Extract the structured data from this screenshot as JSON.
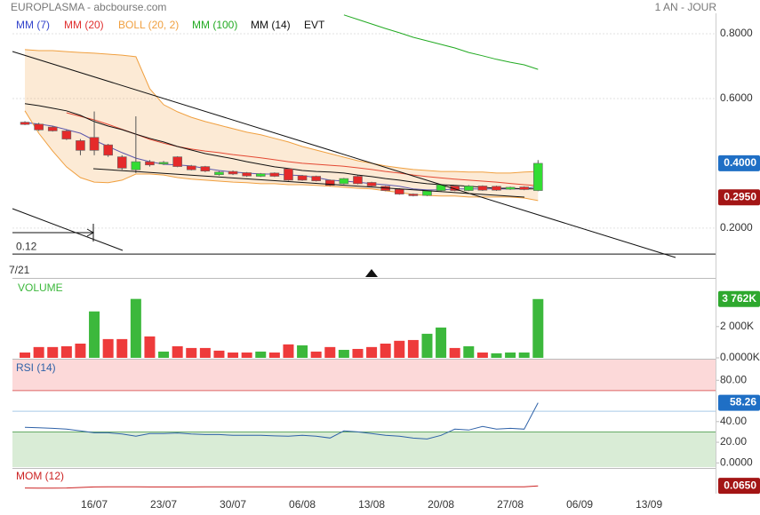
{
  "header": {
    "title": "EUROPLASMA - abcbourse.com",
    "period": "1 AN - JOUR"
  },
  "chart_data": [
    {
      "type": "candlestick",
      "xlim": [
        -0.9,
        49.8
      ],
      "xticks": [
        {
          "value": 5,
          "label": "16/07"
        },
        {
          "value": 10,
          "label": "23/07"
        },
        {
          "value": 15,
          "label": "30/07"
        },
        {
          "value": 20,
          "label": "06/08"
        },
        {
          "value": 25,
          "label": "13/08"
        },
        {
          "value": 30,
          "label": "20/08"
        },
        {
          "value": 35,
          "label": "27/08"
        },
        {
          "value": 40,
          "label": "06/09"
        },
        {
          "value": 45,
          "label": "13/09"
        }
      ],
      "ylim": [
        0.049,
        0.863
      ],
      "yticks": [
        {
          "value": 0.8,
          "label": "0.8000"
        },
        {
          "value": 0.6,
          "label": "0.6000"
        },
        {
          "value": 0.2,
          "label": "0.2000"
        }
      ],
      "grid": true,
      "up_color": "#33dd33",
      "down_color": "#e52a2a",
      "open": [
        0.527,
        0.521,
        0.512,
        0.5,
        0.47,
        0.48,
        0.457,
        0.42,
        0.38,
        0.405,
        0.398,
        0.42,
        0.392,
        0.39,
        0.365,
        0.375,
        0.371,
        0.36,
        0.37,
        0.383,
        0.362,
        0.36,
        0.348,
        0.337,
        0.36,
        0.341,
        0.329,
        0.32,
        0.305,
        0.301,
        0.316,
        0.33,
        0.316,
        0.33,
        0.329,
        0.32,
        0.327,
        0.316
      ],
      "high": [
        0.53,
        0.525,
        0.515,
        0.503,
        0.475,
        0.56,
        0.46,
        0.425,
        0.545,
        0.41,
        0.407,
        0.422,
        0.395,
        0.392,
        0.376,
        0.378,
        0.373,
        0.37,
        0.372,
        0.386,
        0.364,
        0.362,
        0.35,
        0.355,
        0.363,
        0.343,
        0.331,
        0.323,
        0.307,
        0.317,
        0.336,
        0.332,
        0.333,
        0.332,
        0.331,
        0.328,
        0.329,
        0.41
      ],
      "low": [
        0.518,
        0.5,
        0.498,
        0.472,
        0.425,
        0.425,
        0.42,
        0.38,
        0.37,
        0.39,
        0.395,
        0.388,
        0.378,
        0.373,
        0.362,
        0.364,
        0.358,
        0.358,
        0.358,
        0.346,
        0.346,
        0.344,
        0.33,
        0.335,
        0.335,
        0.328,
        0.314,
        0.303,
        0.298,
        0.299,
        0.314,
        0.314,
        0.314,
        0.315,
        0.315,
        0.318,
        0.317,
        0.314
      ],
      "close": [
        0.52,
        0.503,
        0.5,
        0.475,
        0.44,
        0.44,
        0.425,
        0.385,
        0.405,
        0.395,
        0.403,
        0.39,
        0.38,
        0.376,
        0.373,
        0.367,
        0.361,
        0.368,
        0.36,
        0.348,
        0.348,
        0.346,
        0.332,
        0.353,
        0.337,
        0.33,
        0.316,
        0.305,
        0.3,
        0.315,
        0.334,
        0.316,
        0.33,
        0.317,
        0.317,
        0.326,
        0.319,
        0.4
      ],
      "series": [
        {
          "name": "MM (7)",
          "color": "#3344cc",
          "values": [
            0.526,
            0.521,
            0.515,
            0.504,
            0.493,
            0.471,
            0.452,
            0.433,
            0.416,
            0.405,
            0.397,
            0.395,
            0.392,
            0.384,
            0.378,
            0.373,
            0.37,
            0.367,
            0.367,
            0.364,
            0.362,
            0.356,
            0.348,
            0.345,
            0.342,
            0.337,
            0.334,
            0.329,
            0.321,
            0.318,
            0.318,
            0.321,
            0.321,
            0.321,
            0.321,
            0.321,
            0.321,
            0.329
          ]
        },
        {
          "name": "MM (20)",
          "color": "#e03030",
          "values": [
            null,
            null,
            null,
            0.556,
            0.545,
            0.534,
            0.52,
            0.505,
            0.49,
            0.474,
            0.462,
            0.452,
            0.444,
            0.438,
            0.433,
            0.427,
            0.422,
            0.417,
            0.411,
            0.405,
            0.4,
            0.397,
            0.394,
            0.391,
            0.386,
            0.381,
            0.375,
            0.37,
            0.364,
            0.359,
            0.355,
            0.351,
            0.348,
            0.345,
            0.342,
            0.338,
            0.334,
            0.331
          ]
        },
        {
          "name": "BOLL (20, 2)",
          "color": "#f0a040",
          "upper": [
            0.751,
            0.748,
            0.748,
            0.745,
            0.742,
            0.74,
            0.737,
            0.734,
            0.729,
            0.63,
            0.581,
            0.559,
            0.542,
            0.529,
            0.518,
            0.507,
            0.496,
            0.488,
            0.477,
            0.466,
            0.452,
            0.441,
            0.43,
            0.419,
            0.408,
            0.4,
            0.392,
            0.386,
            0.381,
            0.378,
            0.375,
            0.375,
            0.373,
            0.373,
            0.37,
            0.37,
            0.373,
            0.375
          ],
          "lower": [
            0.562,
            0.493,
            0.438,
            0.389,
            0.356,
            0.342,
            0.34,
            0.348,
            0.367,
            0.367,
            0.364,
            0.356,
            0.351,
            0.348,
            0.345,
            0.342,
            0.34,
            0.337,
            0.337,
            0.334,
            0.334,
            0.332,
            0.329,
            0.326,
            0.323,
            0.321,
            0.315,
            0.31,
            0.304,
            0.301,
            0.299,
            0.299,
            0.296,
            0.296,
            0.296,
            0.296,
            0.293,
            0.285
          ]
        },
        {
          "name": "MM (100)",
          "color": "#22aa22",
          "values": [
            null,
            null,
            null,
            null,
            null,
            null,
            null,
            null,
            null,
            null,
            null,
            null,
            null,
            null,
            null,
            null,
            null,
            null,
            null,
            null,
            null,
            null,
            null,
            0.858,
            0.844,
            0.83,
            0.816,
            0.803,
            0.789,
            0.778,
            0.767,
            0.756,
            0.742,
            0.732,
            0.721,
            0.712,
            0.704,
            0.69
          ]
        },
        {
          "name": "MM (14)",
          "color": "#111111",
          "values": [
            0.584,
            0.578,
            0.57,
            0.562,
            0.548,
            0.529,
            0.515,
            0.504,
            0.49,
            0.477,
            0.466,
            0.452,
            0.441,
            0.43,
            0.422,
            0.414,
            0.405,
            0.397,
            0.389,
            0.384,
            0.378,
            0.375,
            0.373,
            0.37,
            0.364,
            0.359,
            0.353,
            0.348,
            0.342,
            0.337,
            0.334,
            0.332,
            0.329,
            0.326,
            0.323,
            0.323,
            0.321,
            0.321
          ]
        }
      ],
      "event_label": "EVT",
      "hline": {
        "value": 0.12,
        "label": "0.12"
      },
      "marker_text": "7/21",
      "price_tags": [
        {
          "value": 0.4,
          "label": "0.4000",
          "color": "#1f6fc5"
        },
        {
          "value": 0.295,
          "label": "0.2950",
          "color": "#a31515"
        }
      ]
    },
    {
      "type": "bar",
      "title": "VOLUME",
      "ylim": [
        0,
        5000
      ],
      "yticks": [
        {
          "value": 0,
          "label": "0.0000K"
        },
        {
          "value": 2000,
          "label": "2 000K"
        }
      ],
      "values": [
        340,
        690,
        690,
        740,
        910,
        2970,
        1200,
        1200,
        3770,
        1370,
        400,
        740,
        630,
        630,
        460,
        340,
        340,
        400,
        340,
        860,
        800,
        400,
        690,
        510,
        570,
        690,
        910,
        1090,
        1140,
        1540,
        1940,
        630,
        740,
        340,
        290,
        340,
        340,
        3762
      ],
      "colors": [
        "#ee3b3b",
        "#ee3b3b",
        "#ee3b3b",
        "#ee3b3b",
        "#ee3b3b",
        "#3cb83c",
        "#ee3b3b",
        "#ee3b3b",
        "#3cb83c",
        "#ee3b3b",
        "#3cb83c",
        "#ee3b3b",
        "#ee3b3b",
        "#ee3b3b",
        "#ee3b3b",
        "#ee3b3b",
        "#ee3b3b",
        "#3cb83c",
        "#ee3b3b",
        "#ee3b3b",
        "#3cb83c",
        "#ee3b3b",
        "#ee3b3b",
        "#3cb83c",
        "#ee3b3b",
        "#ee3b3b",
        "#ee3b3b",
        "#ee3b3b",
        "#ee3b3b",
        "#3cb83c",
        "#3cb83c",
        "#ee3b3b",
        "#3cb83c",
        "#ee3b3b",
        "#3cb83c",
        "#3cb83c",
        "#3cb83c",
        "#3cb83c"
      ],
      "value_labels": [
        null,
        null,
        null,
        null,
        null,
        null,
        null,
        null,
        null,
        null,
        null,
        null,
        null,
        null,
        null,
        null,
        null,
        null,
        null,
        null,
        null,
        null,
        null,
        null,
        null,
        null,
        null,
        null,
        null,
        null,
        null,
        null,
        null,
        null,
        null,
        null,
        null,
        "3 762K"
      ],
      "tag_color": "#2ea82e"
    },
    {
      "type": "line",
      "title": "RSI (14)",
      "color": "#2f62a8",
      "ylim": [
        -4,
        100
      ],
      "yticks": [
        {
          "value": 80,
          "label": "80.00"
        },
        {
          "value": 40,
          "label": "40.00"
        },
        {
          "value": 20,
          "label": "20.00"
        },
        {
          "value": 0,
          "label": "0.0000"
        }
      ],
      "zones": {
        "high": 70,
        "mid": 50,
        "low": 30
      },
      "values": [
        34.4,
        34,
        33.5,
        32.7,
        31,
        29.2,
        29.2,
        28,
        25.8,
        28.4,
        28.4,
        29,
        28,
        27.5,
        27.5,
        26.7,
        26.7,
        26.7,
        26.2,
        25.8,
        26.7,
        25.8,
        24.1,
        31,
        30,
        28.4,
        26.7,
        25.8,
        24,
        23.2,
        26.7,
        32.7,
        31.8,
        35.3,
        32.7,
        33.5,
        32.7,
        58.26
      ],
      "value_labels": [
        null,
        null,
        null,
        null,
        null,
        null,
        null,
        null,
        null,
        null,
        null,
        null,
        null,
        null,
        null,
        null,
        null,
        null,
        null,
        null,
        null,
        null,
        null,
        null,
        null,
        null,
        null,
        null,
        null,
        null,
        null,
        null,
        null,
        null,
        null,
        null,
        null,
        "58.26"
      ],
      "tag_color": "#1f6fc5"
    },
    {
      "type": "line",
      "title": "MOM (12)",
      "color": "#cc2222",
      "ylim": [
        -0.25,
        0.75
      ],
      "values": [
        -0.02,
        -0.03,
        -0.03,
        -0.02,
        0,
        0.02,
        0.03,
        0.03,
        0.03,
        0.02,
        0.02,
        0.02,
        0.02,
        0.03,
        0.03,
        0.03,
        0.03,
        0.03,
        0.03,
        0.03,
        0.03,
        0.03,
        0.03,
        0.03,
        0.03,
        0.03,
        0.03,
        0.03,
        0.03,
        0.03,
        0.03,
        0.03,
        0.03,
        0.03,
        0.03,
        0.03,
        0.03,
        0.065
      ],
      "value_labels": [
        null,
        null,
        null,
        null,
        null,
        null,
        null,
        null,
        null,
        null,
        null,
        null,
        null,
        null,
        null,
        null,
        null,
        null,
        null,
        null,
        null,
        null,
        null,
        null,
        null,
        null,
        null,
        null,
        null,
        null,
        null,
        null,
        null,
        null,
        null,
        null,
        null,
        "0.0650"
      ],
      "tag_color": "#a31515"
    }
  ]
}
